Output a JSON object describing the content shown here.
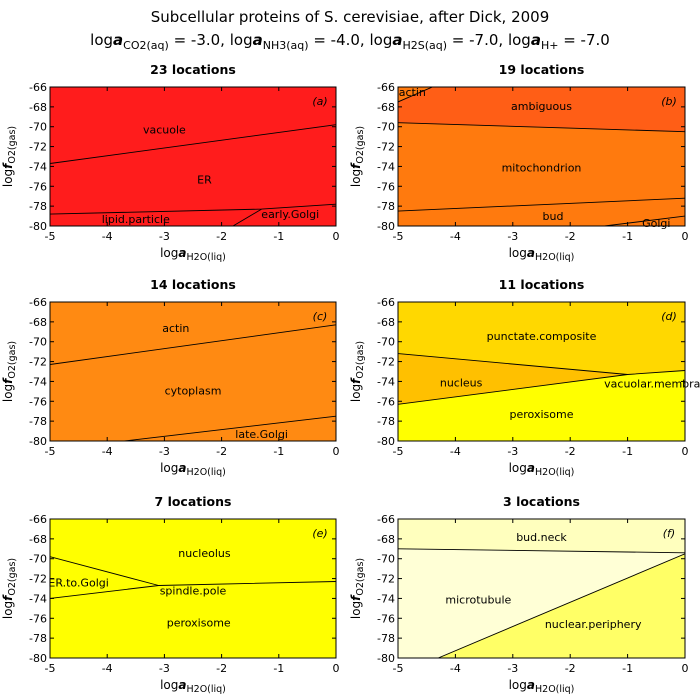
{
  "title": "Subcellular proteins of S. cerevisiae, after Dick, 2009",
  "subtitle": [
    {
      "pre": "log",
      "a": "a",
      "sub": "CO2(aq)",
      "val": " = -3.0, "
    },
    {
      "pre": "log",
      "a": "a",
      "sub": "NH3(aq)",
      "val": " = -4.0, "
    },
    {
      "pre": "log",
      "a": "a",
      "sub": "H2S(aq)",
      "val": " = -7.0, "
    },
    {
      "pre": "log",
      "a": "a",
      "sub": "H+",
      "val": " = -7.0"
    }
  ],
  "chart_data": [
    {
      "type": "area",
      "title": "23 locations",
      "tag": "(a)",
      "xlabel": {
        "pre": "log",
        "italic": "a",
        "sub": "H2O(liq)"
      },
      "ylabel": {
        "pre": "log",
        "italic": "f",
        "sub": "O2(gas)"
      },
      "xlim": [
        -5,
        0
      ],
      "ylim": [
        -80,
        -66
      ],
      "xticks": [
        "-5",
        "-4",
        "-3",
        "-2",
        "-1",
        "0"
      ],
      "yticks": [
        "-66",
        "-68",
        "-70",
        "-72",
        "-74",
        "-76",
        "-78",
        "-80"
      ],
      "regions": [
        {
          "name": "vacuole",
          "color": "#ff1c1c",
          "polygon": [
            [
              -5,
              -66
            ],
            [
              0,
              -66
            ],
            [
              0,
              -69.8
            ],
            [
              -5,
              -73.7
            ]
          ],
          "label_at": [
            -3,
            -70.3
          ]
        },
        {
          "name": "ER",
          "color": "#ff1c1c",
          "polygon": [
            [
              -5,
              -73.7
            ],
            [
              0,
              -69.8
            ],
            [
              0,
              -77.8
            ],
            [
              -1.3,
              -78.3
            ],
            [
              -5,
              -78.8
            ]
          ],
          "label_at": [
            -2.3,
            -75.3
          ]
        },
        {
          "name": "lipid.particle",
          "color": "#ff1c1c",
          "polygon": [
            [
              -5,
              -78.8
            ],
            [
              -1.3,
              -78.3
            ],
            [
              -1.8,
              -80
            ],
            [
              -5,
              -80
            ]
          ],
          "label_at": [
            -3.5,
            -79.3
          ]
        },
        {
          "name": "early.Golgi",
          "color": "#ff1c1c",
          "polygon": [
            [
              -1.3,
              -78.3
            ],
            [
              0,
              -77.8
            ],
            [
              0,
              -80
            ],
            [
              -1.8,
              -80
            ]
          ],
          "label_at": [
            -0.8,
            -78.8
          ]
        }
      ],
      "boundaries": [
        [
          [
            -5,
            -73.7
          ],
          [
            0,
            -69.8
          ]
        ],
        [
          [
            -5,
            -78.8
          ],
          [
            -1.3,
            -78.3
          ],
          [
            0,
            -77.8
          ]
        ],
        [
          [
            -1.3,
            -78.3
          ],
          [
            -1.8,
            -80
          ]
        ]
      ]
    },
    {
      "type": "area",
      "title": "19 locations",
      "tag": "(b)",
      "xlabel": {
        "pre": "log",
        "italic": "a",
        "sub": "H2O(liq)"
      },
      "ylabel": {
        "pre": "log",
        "italic": "f",
        "sub": "O2(gas)"
      },
      "xlim": [
        -5,
        0
      ],
      "ylim": [
        -80,
        -66
      ],
      "xticks": [
        "-5",
        "-4",
        "-3",
        "-2",
        "-1",
        "0"
      ],
      "yticks": [
        "-66",
        "-68",
        "-70",
        "-72",
        "-74",
        "-76",
        "-78",
        "-80"
      ],
      "regions": [
        {
          "name": "actin",
          "color": "#ff7a0e",
          "polygon": [
            [
              -5,
              -66
            ],
            [
              -4.4,
              -66
            ],
            [
              -5,
              -67.5
            ]
          ],
          "label_at": [
            -4.75,
            -66.5
          ]
        },
        {
          "name": "ambiguous",
          "color": "#ff5e16",
          "polygon": [
            [
              -4.4,
              -66
            ],
            [
              0,
              -66
            ],
            [
              0,
              -70.5
            ],
            [
              -5,
              -69.6
            ],
            [
              -5,
              -67.5
            ]
          ],
          "label_at": [
            -2.5,
            -67.9
          ]
        },
        {
          "name": "mitochondrion",
          "color": "#ff7a0e",
          "polygon": [
            [
              -5,
              -69.6
            ],
            [
              0,
              -70.5
            ],
            [
              0,
              -77.2
            ],
            [
              -5,
              -78.5
            ]
          ],
          "label_at": [
            -2.5,
            -74.1
          ]
        },
        {
          "name": "bud",
          "color": "#ff7a0e",
          "polygon": [
            [
              -5,
              -78.5
            ],
            [
              0,
              -77.2
            ],
            [
              0,
              -79
            ],
            [
              -1.4,
              -80
            ],
            [
              -5,
              -80
            ]
          ],
          "label_at": [
            -2.3,
            -79
          ]
        },
        {
          "name": "Golgi",
          "color": "#ff7a0e",
          "polygon": [
            [
              -1.4,
              -80
            ],
            [
              0,
              -79
            ],
            [
              0,
              -80
            ]
          ],
          "label_at": [
            -0.5,
            -79.7
          ]
        }
      ],
      "boundaries": [
        [
          [
            -4.4,
            -66
          ],
          [
            -5,
            -67.5
          ]
        ],
        [
          [
            -5,
            -69.6
          ],
          [
            0,
            -70.5
          ]
        ],
        [
          [
            -5,
            -78.5
          ],
          [
            0,
            -77.2
          ]
        ],
        [
          [
            -1.4,
            -80
          ],
          [
            0,
            -79
          ]
        ]
      ]
    },
    {
      "type": "area",
      "title": "14 locations",
      "tag": "(c)",
      "xlabel": {
        "pre": "log",
        "italic": "a",
        "sub": "H2O(liq)"
      },
      "ylabel": {
        "pre": "log",
        "italic": "f",
        "sub": "O2(gas)"
      },
      "xlim": [
        -5,
        0
      ],
      "ylim": [
        -80,
        -66
      ],
      "xticks": [
        "-5",
        "-4",
        "-3",
        "-2",
        "-1",
        "0"
      ],
      "yticks": [
        "-66",
        "-68",
        "-70",
        "-72",
        "-74",
        "-76",
        "-78",
        "-80"
      ],
      "regions": [
        {
          "name": "actin",
          "color": "#ff8a12",
          "polygon": [
            [
              -5,
              -66
            ],
            [
              0,
              -66
            ],
            [
              0,
              -68.3
            ],
            [
              -5,
              -72.3
            ]
          ],
          "label_at": [
            -2.8,
            -68.6
          ]
        },
        {
          "name": "cytoplasm",
          "color": "#ff8a12",
          "polygon": [
            [
              -5,
              -72.3
            ],
            [
              0,
              -68.3
            ],
            [
              0,
              -77.5
            ],
            [
              -3.7,
              -80
            ],
            [
              -5,
              -80
            ]
          ],
          "label_at": [
            -2.5,
            -74.9
          ]
        },
        {
          "name": "late.Golgi",
          "color": "#ff8a12",
          "polygon": [
            [
              -3.7,
              -80
            ],
            [
              0,
              -77.5
            ],
            [
              0,
              -80
            ]
          ],
          "label_at": [
            -1.3,
            -79.3
          ]
        }
      ],
      "boundaries": [
        [
          [
            -5,
            -72.3
          ],
          [
            0,
            -68.3
          ]
        ],
        [
          [
            -3.7,
            -80
          ],
          [
            0,
            -77.5
          ]
        ]
      ]
    },
    {
      "type": "area",
      "title": "11 locations",
      "tag": "(d)",
      "xlabel": {
        "pre": "log",
        "italic": "a",
        "sub": "H2O(liq)"
      },
      "ylabel": {
        "pre": "log",
        "italic": "f",
        "sub": "O2(gas)"
      },
      "xlim": [
        -5,
        0
      ],
      "ylim": [
        -80,
        -66
      ],
      "xticks": [
        "-5",
        "-4",
        "-3",
        "-2",
        "-1",
        "0"
      ],
      "yticks": [
        "-66",
        "-68",
        "-70",
        "-72",
        "-74",
        "-76",
        "-78",
        "-80"
      ],
      "regions": [
        {
          "name": "punctate.composite",
          "color": "#ffd800",
          "polygon": [
            [
              -5,
              -66
            ],
            [
              0,
              -66
            ],
            [
              0,
              -72.9
            ],
            [
              -1,
              -73.3
            ],
            [
              -5,
              -71.2
            ]
          ],
          "label_at": [
            -2.5,
            -69.4
          ]
        },
        {
          "name": "nucleus",
          "color": "#ffc000",
          "polygon": [
            [
              -5,
              -71.2
            ],
            [
              -1,
              -73.3
            ],
            [
              -5,
              -76.3
            ]
          ],
          "label_at": [
            -3.9,
            -74.1
          ]
        },
        {
          "name": "vacuolar.membrane",
          "color": "#ffd800",
          "polygon": [
            [
              -1,
              -73.3
            ],
            [
              0,
              -72.9
            ],
            [
              0,
              -74.3
            ],
            [
              -1,
              -74.7
            ]
          ],
          "label_at": [
            -0.45,
            -74.2
          ]
        },
        {
          "name": "peroxisome",
          "color": "#ffff00",
          "polygon": [
            [
              -5,
              -76.3
            ],
            [
              -1,
              -73.3
            ],
            [
              0,
              -72.9
            ],
            [
              0,
              -80
            ],
            [
              -5,
              -80
            ]
          ],
          "label_at": [
            -2.5,
            -77.3
          ]
        }
      ],
      "boundaries": [
        [
          [
            -5,
            -71.2
          ],
          [
            -1,
            -73.3
          ],
          [
            0,
            -72.9
          ]
        ],
        [
          [
            -5,
            -76.3
          ],
          [
            -1,
            -73.3
          ]
        ]
      ]
    },
    {
      "type": "area",
      "title": "7 locations",
      "tag": "(e)",
      "xlabel": {
        "pre": "log",
        "italic": "a",
        "sub": "H2O(liq)"
      },
      "ylabel": {
        "pre": "log",
        "italic": "f",
        "sub": "O2(gas)"
      },
      "xlim": [
        -5,
        0
      ],
      "ylim": [
        -80,
        -66
      ],
      "xticks": [
        "-5",
        "-4",
        "-3",
        "-2",
        "-1",
        "0"
      ],
      "yticks": [
        "-66",
        "-68",
        "-70",
        "-72",
        "-74",
        "-76",
        "-78",
        "-80"
      ],
      "regions": [
        {
          "name": "nucleolus",
          "color": "#ffff00",
          "polygon": [
            [
              -5,
              -66
            ],
            [
              0,
              -66
            ],
            [
              0,
              -72.3
            ],
            [
              -3.1,
              -72.7
            ],
            [
              -5,
              -69.8
            ]
          ],
          "label_at": [
            -2.3,
            -69.4
          ]
        },
        {
          "name": "ER.to.Golgi",
          "color": "#ffff00",
          "polygon": [
            [
              -5,
              -69.8
            ],
            [
              -3.1,
              -72.7
            ],
            [
              -5,
              -74
            ]
          ],
          "label_at": [
            -4.5,
            -72.4
          ]
        },
        {
          "name": "spindle.pole",
          "color": "#ffff00",
          "polygon": [
            [
              -3.1,
              -72.7
            ],
            [
              0,
              -72.3
            ],
            [
              -3,
              -73.1
            ]
          ],
          "label_at": [
            -2.5,
            -73.2
          ]
        },
        {
          "name": "peroxisome",
          "color": "#ffff00",
          "polygon": [
            [
              -5,
              -74
            ],
            [
              -3.1,
              -72.7
            ],
            [
              0,
              -72.3
            ],
            [
              0,
              -80
            ],
            [
              -5,
              -80
            ]
          ],
          "label_at": [
            -2.4,
            -76.4
          ]
        }
      ],
      "boundaries": [
        [
          [
            -5,
            -69.8
          ],
          [
            -3.1,
            -72.7
          ]
        ],
        [
          [
            -5,
            -74
          ],
          [
            -3.1,
            -72.7
          ],
          [
            0,
            -72.3
          ]
        ]
      ]
    },
    {
      "type": "area",
      "title": "3 locations",
      "tag": "(f)",
      "xlabel": {
        "pre": "log",
        "italic": "a",
        "sub": "H2O(liq)"
      },
      "ylabel": {
        "pre": "log",
        "italic": "f",
        "sub": "O2(gas)"
      },
      "xlim": [
        -5,
        0
      ],
      "ylim": [
        -80,
        -66
      ],
      "xticks": [
        "-5",
        "-4",
        "-3",
        "-2",
        "-1",
        "0"
      ],
      "yticks": [
        "-66",
        "-68",
        "-70",
        "-72",
        "-74",
        "-76",
        "-78",
        "-80"
      ],
      "regions": [
        {
          "name": "bud.neck",
          "color": "#ffffbe",
          "polygon": [
            [
              -5,
              -66
            ],
            [
              0,
              -66
            ],
            [
              0,
              -69.4
            ],
            [
              -5,
              -69
            ]
          ],
          "label_at": [
            -2.5,
            -67.8
          ]
        },
        {
          "name": "microtubule",
          "color": "#ffffd6",
          "polygon": [
            [
              -5,
              -69
            ],
            [
              0,
              -69.4
            ],
            [
              0,
              -69.5
            ],
            [
              -4.3,
              -80
            ],
            [
              -5,
              -80
            ]
          ],
          "label_at": [
            -3.6,
            -74.1
          ]
        },
        {
          "name": "nuclear.periphery",
          "color": "#ffff66",
          "polygon": [
            [
              -4.3,
              -80
            ],
            [
              0,
              -69.5
            ],
            [
              0,
              -80
            ]
          ],
          "label_at": [
            -1.6,
            -76.6
          ]
        }
      ],
      "boundaries": [
        [
          [
            -5,
            -69
          ],
          [
            0,
            -69.4
          ]
        ],
        [
          [
            -4.3,
            -80
          ],
          [
            0,
            -69.5
          ]
        ]
      ]
    }
  ]
}
